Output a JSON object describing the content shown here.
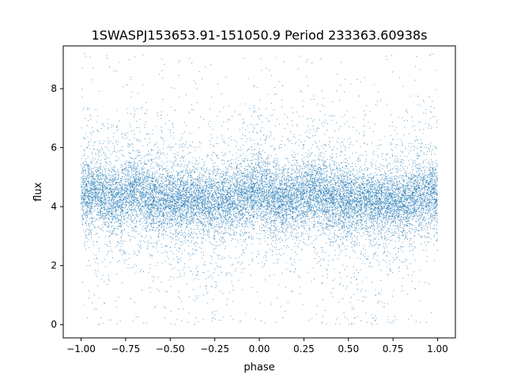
{
  "chart_data": {
    "type": "scatter",
    "title": "1SWASPJ153653.91-151050.9 Period 233363.60938s",
    "xlabel": "phase",
    "ylabel": "flux",
    "xlim": [
      -1.1,
      1.1
    ],
    "ylim": [
      -0.45,
      9.45
    ],
    "xticks": [
      -1.0,
      -0.75,
      -0.5,
      -0.25,
      0.0,
      0.25,
      0.5,
      0.75,
      1.0
    ],
    "xtick_labels": [
      "−1.00",
      "−0.75",
      "−0.50",
      "−0.25",
      "0.00",
      "0.25",
      "0.50",
      "0.75",
      "1.00"
    ],
    "yticks": [
      0,
      2,
      4,
      6,
      8
    ],
    "ytick_labels": [
      "0",
      "2",
      "4",
      "6",
      "8"
    ],
    "grid": false,
    "legend": "none",
    "marker_color": "#1f77b4",
    "series": [
      {
        "point_count_estimate": 60000,
        "distribution": {
          "center_flux": 4.2,
          "core_band": [
            3.2,
            5.3
          ],
          "envelope_low": 0.0,
          "envelope_high": 9.2,
          "brighter_phases": [
            -0.95,
            -0.7,
            0.0,
            0.3,
            0.95
          ],
          "dimmer_phases": [
            -0.35,
            -0.25,
            0.55,
            0.7
          ]
        },
        "sample_points": [
          [
            -1.0,
            4.1
          ],
          [
            -0.98,
            5.9
          ],
          [
            -0.95,
            2.0
          ],
          [
            -0.9,
            4.6
          ],
          [
            -0.85,
            3.3
          ],
          [
            -0.8,
            6.7
          ],
          [
            -0.75,
            4.0
          ],
          [
            -0.7,
            5.5
          ],
          [
            -0.65,
            1.8
          ],
          [
            -0.6,
            4.3
          ],
          [
            -0.55,
            7.1
          ],
          [
            -0.5,
            4.2
          ],
          [
            -0.45,
            2.6
          ],
          [
            -0.4,
            4.0
          ],
          [
            -0.35,
            0.9
          ],
          [
            -0.3,
            4.4
          ],
          [
            -0.25,
            2.9
          ],
          [
            -0.2,
            5.2
          ],
          [
            -0.15,
            4.1
          ],
          [
            -0.1,
            6.3
          ],
          [
            -0.05,
            3.7
          ],
          [
            0.0,
            5.8
          ],
          [
            0.05,
            4.5
          ],
          [
            0.1,
            2.1
          ],
          [
            0.15,
            4.0
          ],
          [
            0.2,
            3.5
          ],
          [
            0.25,
            6.1
          ],
          [
            0.3,
            4.7
          ],
          [
            0.35,
            1.4
          ],
          [
            0.4,
            4.2
          ],
          [
            0.45,
            7.6
          ],
          [
            0.5,
            3.9
          ],
          [
            0.55,
            1.2
          ],
          [
            0.6,
            4.3
          ],
          [
            0.65,
            2.4
          ],
          [
            0.7,
            0.6
          ],
          [
            0.75,
            4.1
          ],
          [
            0.8,
            5.6
          ],
          [
            0.85,
            3.1
          ],
          [
            0.9,
            6.6
          ],
          [
            0.95,
            4.8
          ],
          [
            1.0,
            4.4
          ]
        ]
      }
    ]
  }
}
